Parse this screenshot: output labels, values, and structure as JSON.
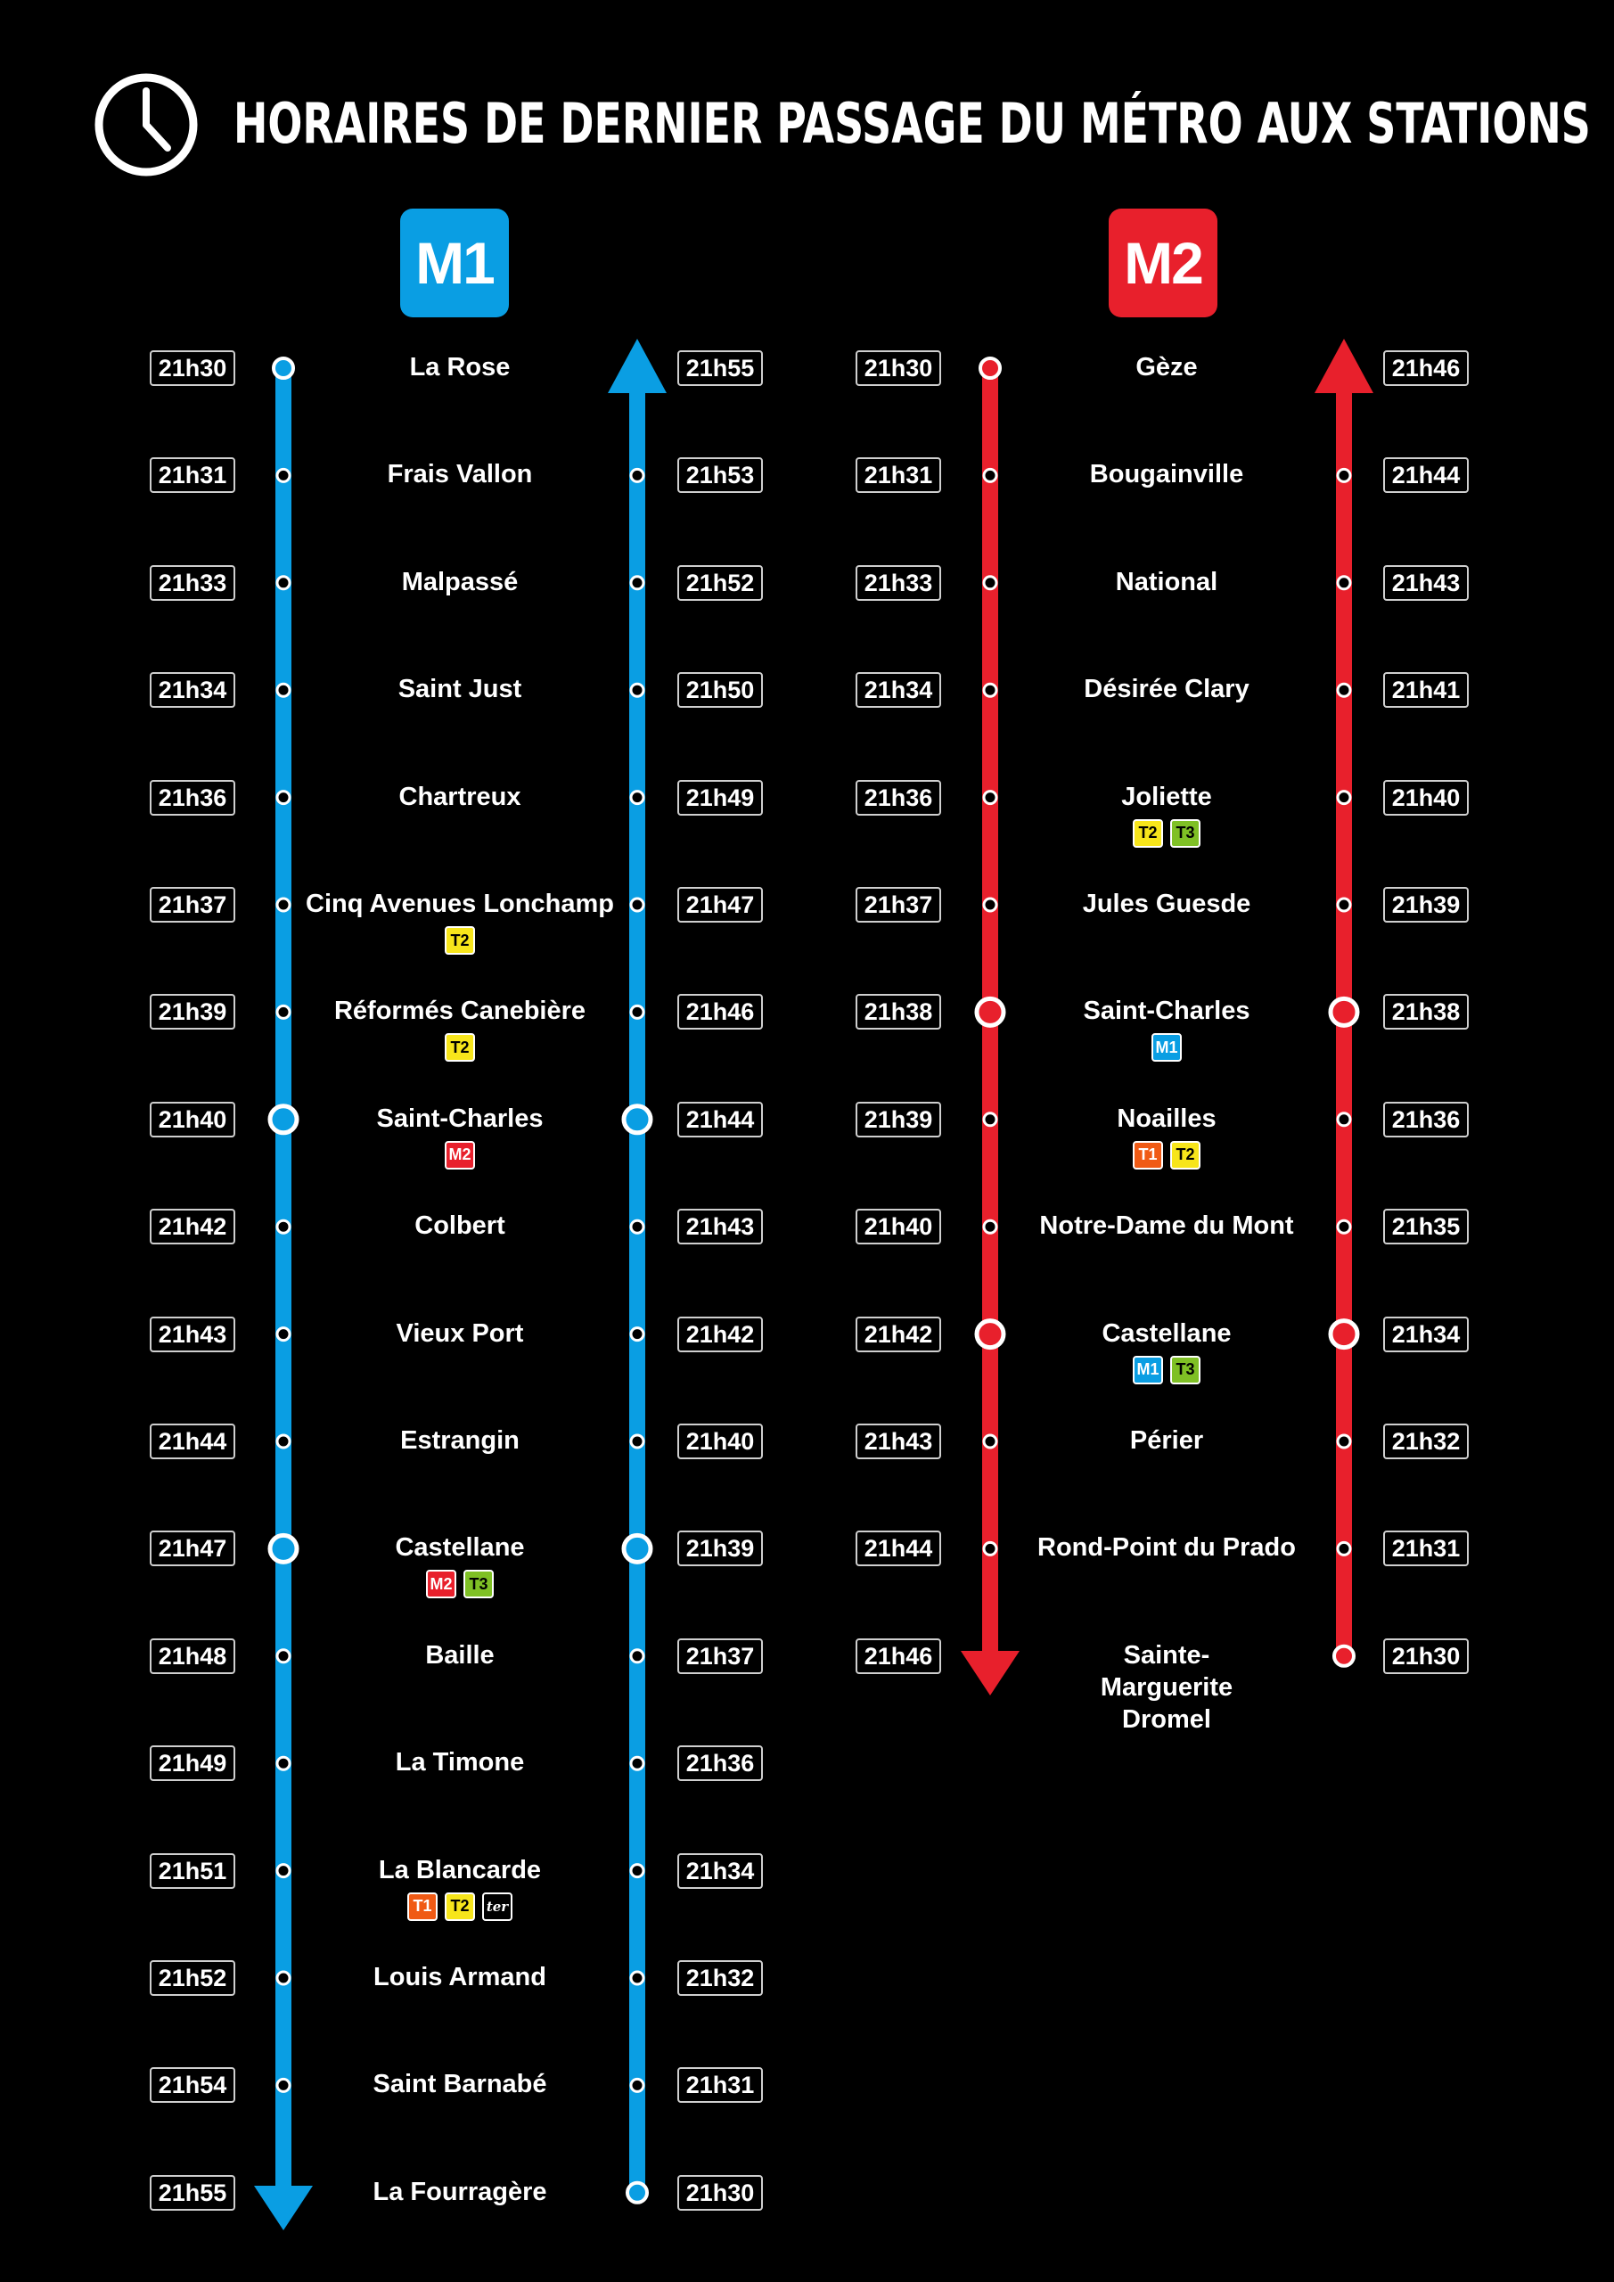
{
  "title": "HORAIRES DE DERNIER PASSAGE DU MÉTRO AUX STATIONS",
  "colors": {
    "m1": "#0a9ee3",
    "m2": "#e8202c",
    "T1": "#f05a14",
    "T2": "#f7e51b",
    "T3": "#7fc025",
    "ter": "#000000"
  },
  "lines": [
    {
      "id": "m1",
      "label": "M1",
      "color": "#0a9ee3",
      "stations": [
        {
          "name": "La Rose",
          "down": "21h30",
          "up": "21h55",
          "tags": []
        },
        {
          "name": "Frais Vallon",
          "down": "21h31",
          "up": "21h53",
          "tags": []
        },
        {
          "name": "Malpassé",
          "down": "21h33",
          "up": "21h52",
          "tags": []
        },
        {
          "name": "Saint Just",
          "down": "21h34",
          "up": "21h50",
          "tags": []
        },
        {
          "name": "Chartreux",
          "down": "21h36",
          "up": "21h49",
          "tags": []
        },
        {
          "name": "Cinq Avenues Lonchamp",
          "down": "21h37",
          "up": "21h47",
          "tags": [
            "T2"
          ]
        },
        {
          "name": "Réformés Canebière",
          "down": "21h39",
          "up": "21h46",
          "tags": [
            "T2"
          ]
        },
        {
          "name": "Saint-Charles",
          "down": "21h40",
          "up": "21h44",
          "tags": [
            "M2"
          ],
          "transfer": true
        },
        {
          "name": "Colbert",
          "down": "21h42",
          "up": "21h43",
          "tags": []
        },
        {
          "name": "Vieux Port",
          "down": "21h43",
          "up": "21h42",
          "tags": []
        },
        {
          "name": "Estrangin",
          "down": "21h44",
          "up": "21h40",
          "tags": []
        },
        {
          "name": "Castellane",
          "down": "21h47",
          "up": "21h39",
          "tags": [
            "M2",
            "T3"
          ],
          "transfer": true
        },
        {
          "name": "Baille",
          "down": "21h48",
          "up": "21h37",
          "tags": []
        },
        {
          "name": "La Timone",
          "down": "21h49",
          "up": "21h36",
          "tags": []
        },
        {
          "name": "La Blancarde",
          "down": "21h51",
          "up": "21h34",
          "tags": [
            "T1",
            "T2",
            "ter"
          ]
        },
        {
          "name": "Louis Armand",
          "down": "21h52",
          "up": "21h32",
          "tags": []
        },
        {
          "name": "Saint Barnabé",
          "down": "21h54",
          "up": "21h31",
          "tags": []
        },
        {
          "name": "La Fourragère",
          "down": "21h55",
          "up": "21h30",
          "tags": []
        }
      ]
    },
    {
      "id": "m2",
      "label": "M2",
      "color": "#e8202c",
      "stations": [
        {
          "name": "Gèze",
          "down": "21h30",
          "up": "21h46",
          "tags": []
        },
        {
          "name": "Bougainville",
          "down": "21h31",
          "up": "21h44",
          "tags": []
        },
        {
          "name": "National",
          "down": "21h33",
          "up": "21h43",
          "tags": []
        },
        {
          "name": "Désirée Clary",
          "down": "21h34",
          "up": "21h41",
          "tags": []
        },
        {
          "name": "Joliette",
          "down": "21h36",
          "up": "21h40",
          "tags": [
            "T2",
            "T3"
          ]
        },
        {
          "name": "Jules Guesde",
          "down": "21h37",
          "up": "21h39",
          "tags": []
        },
        {
          "name": "Saint-Charles",
          "down": "21h38",
          "up": "21h38",
          "tags": [
            "M1"
          ],
          "transfer": true
        },
        {
          "name": "Noailles",
          "down": "21h39",
          "up": "21h36",
          "tags": [
            "T1",
            "T2"
          ]
        },
        {
          "name": "Notre-Dame du Mont",
          "down": "21h40",
          "up": "21h35",
          "tags": []
        },
        {
          "name": "Castellane",
          "down": "21h42",
          "up": "21h34",
          "tags": [
            "M1",
            "T3"
          ],
          "transfer": true
        },
        {
          "name": "Périer",
          "down": "21h43",
          "up": "21h32",
          "tags": []
        },
        {
          "name": "Rond-Point du Prado",
          "down": "21h44",
          "up": "21h31",
          "tags": []
        },
        {
          "name": "Sainte-Marguerite Dromel",
          "down": "21h46",
          "up": "21h30",
          "tags": []
        }
      ]
    }
  ]
}
